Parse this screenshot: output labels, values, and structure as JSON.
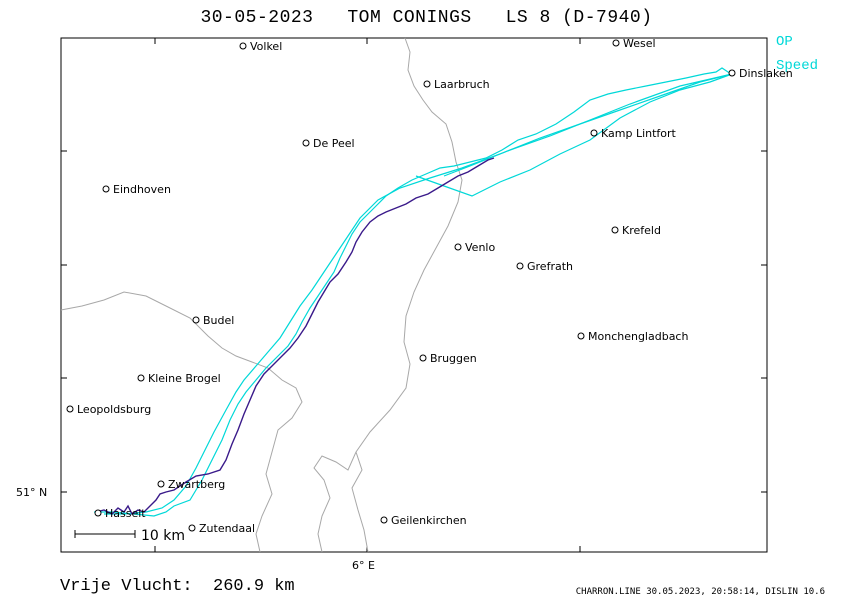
{
  "title": "30-05-2023   TOM CONINGS   LS 8 (D-7940)",
  "legend": {
    "op": "OP",
    "speed": "Speed"
  },
  "axes": {
    "lat_label": "51° N",
    "lon_label": "6° E"
  },
  "scale": {
    "label": "10 km"
  },
  "places": [
    {
      "name": "Volkel"
    },
    {
      "name": "Wesel"
    },
    {
      "name": "Dinslaken"
    },
    {
      "name": "Laarbruch"
    },
    {
      "name": "Kamp Lintfort"
    },
    {
      "name": "De Peel"
    },
    {
      "name": "Eindhoven"
    },
    {
      "name": "Venlo"
    },
    {
      "name": "Krefeld"
    },
    {
      "name": "Grefrath"
    },
    {
      "name": "Budel"
    },
    {
      "name": "Monchengladbach"
    },
    {
      "name": "Bruggen"
    },
    {
      "name": "Kleine Brogel"
    },
    {
      "name": "Leopoldsburg"
    },
    {
      "name": "Zwartberg"
    },
    {
      "name": "Hasselt"
    },
    {
      "name": "Zutendaal"
    },
    {
      "name": "Geilenkirchen"
    }
  ],
  "footer": {
    "distance": "Vrije Vlucht:  260.9 km",
    "credit": "CHARRON.LINE 30.05.2023, 20:58:14, DISLIN 10.6"
  },
  "colors": {
    "track_op": "#00d8d8",
    "track_speed": "#3a1a8a",
    "border": "#a0a0a0"
  }
}
